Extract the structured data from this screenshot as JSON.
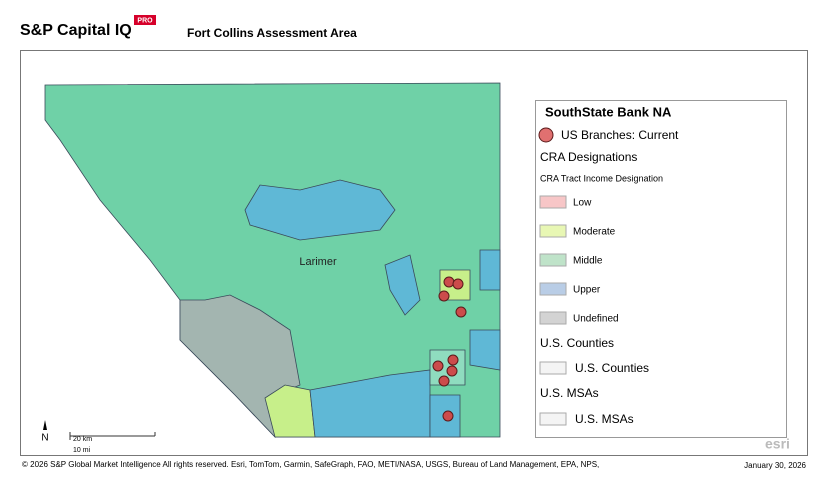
{
  "header": {
    "brand": "S&P Capital IQ",
    "badge": "PRO",
    "title": "Fort Collins Assessment Area"
  },
  "map": {
    "labels": [
      "Larimer"
    ],
    "north": "N",
    "scale": [
      "20 km",
      "10 mi"
    ],
    "attribution_logo": "esri"
  },
  "legend": {
    "title": "SouthState Bank NA",
    "branches": "US Branches: Current",
    "cra_heading": "CRA Designations",
    "cra_subheading": "CRA Tract Income Designation",
    "cra_items": [
      "Low",
      "Moderate",
      "Middle",
      "Upper",
      "Undefined"
    ],
    "counties_heading": "U.S. Counties",
    "counties_item": "U.S. Counties",
    "msas_heading": "U.S. MSAs",
    "msas_item": "U.S. MSAs"
  },
  "footer": {
    "copyright": "© 2026 S&P Global Market Intelligence All rights reserved. Esri, TomTom, Garmin, SafeGraph, FAO, METI/NASA, USGS, Bureau of Land Management, EPA, NPS,",
    "date": "January 30, 2026"
  }
}
